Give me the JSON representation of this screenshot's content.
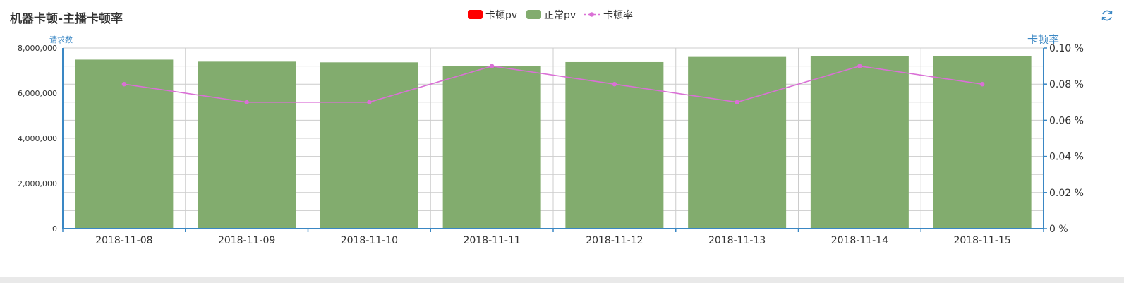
{
  "header": {
    "title": "机器卡顿-主播卡顿率"
  },
  "toolbar": {
    "refresh_icon": "refresh-icon"
  },
  "colors": {
    "stall_pv": "#ff0000",
    "normal_pv": "#82ac6e",
    "stall_rate": "#da70d6",
    "axis": "#3a87c4",
    "grid": "#cccccc",
    "left_axis_label": "#3a87c4",
    "right_axis_label": "#3a87c4"
  },
  "chart_data": {
    "type": "bar",
    "title": "机器卡顿-主播卡顿率",
    "categories": [
      "2018-11-08",
      "2018-11-09",
      "2018-11-10",
      "2018-11-11",
      "2018-11-12",
      "2018-11-13",
      "2018-11-14",
      "2018-11-15"
    ],
    "legend": [
      "卡顿pv",
      "正常pv",
      "卡顿率"
    ],
    "legend_position": "top-center",
    "ylabel_left": "请求数",
    "ylabel_right": "卡顿率",
    "ylim_left": [
      0,
      8000000
    ],
    "ylim_right": [
      0,
      0.1
    ],
    "left_ticks": [
      "0",
      "2,000,000",
      "4,000,000",
      "6,000,000",
      "8,000,000"
    ],
    "right_ticks": [
      "0 %",
      "0.02 %",
      "0.04 %",
      "0.06 %",
      "0.08 %",
      "0.10 %"
    ],
    "grid": true,
    "series": [
      {
        "name": "卡顿pv",
        "type": "bar",
        "stack": "pv",
        "axis": "left",
        "values": [
          6000,
          5200,
          5200,
          6600,
          5900,
          5400,
          7000,
          6100
        ]
      },
      {
        "name": "正常pv",
        "type": "bar",
        "stack": "pv",
        "axis": "left",
        "values": [
          7480000,
          7390000,
          7360000,
          7210000,
          7370000,
          7600000,
          7640000,
          7640000
        ]
      },
      {
        "name": "卡顿率",
        "type": "line",
        "axis": "right",
        "unit": "%",
        "values": [
          0.08,
          0.07,
          0.07,
          0.09,
          0.08,
          0.07,
          0.09,
          0.08
        ]
      }
    ]
  }
}
